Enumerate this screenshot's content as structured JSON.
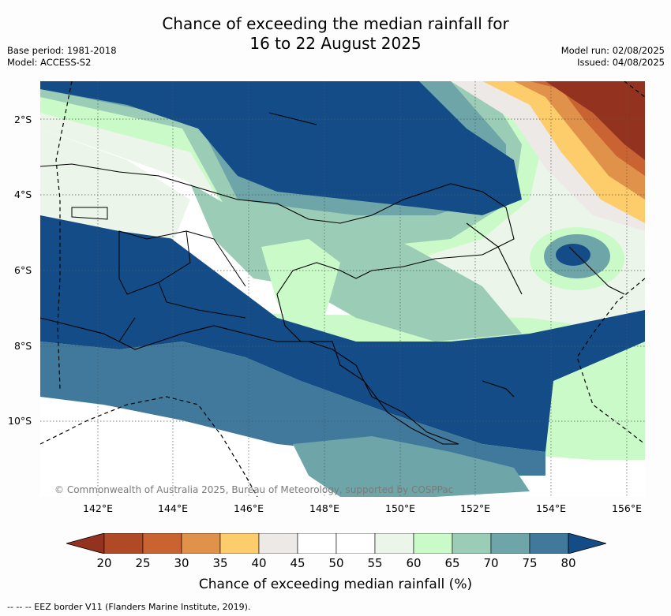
{
  "title_line1": "Chance of exceeding the median rainfall for",
  "title_line2": "16 to 22 August 2025",
  "base_period": "Base period: 1981-2018",
  "model": "Model: ACCESS-S2",
  "model_run": "Model run: 02/08/2025",
  "issued": "Issued: 04/08/2025",
  "lat_labels": [
    "2°S",
    "4°S",
    "6°S",
    "8°S",
    "10°S"
  ],
  "lon_labels": [
    "142°E",
    "144°E",
    "146°E",
    "148°E",
    "150°E",
    "152°E",
    "154°E",
    "156°E"
  ],
  "copyright": "© Commonwealth of Australia 2025, Bureau of Meteorology, supported by COSPPac",
  "colorbar": {
    "ticks": [
      "20",
      "25",
      "30",
      "35",
      "40",
      "45",
      "50",
      "55",
      "60",
      "65",
      "70",
      "75",
      "80"
    ],
    "colors": [
      "#93331f",
      "#b04a26",
      "#c96432",
      "#e1924a",
      "#fdcd6c",
      "#ede9e6",
      "#ffffff",
      "#ffffff",
      "#ecf5ea",
      "#cbfac9",
      "#9bcdb6",
      "#6da5a8",
      "#40799b",
      "#134c87"
    ],
    "label": "Chance of exceeding median rainfall (%)"
  },
  "eez_note": "-- -- -- EEZ border V11 (Flanders Marine Institute, 2019)."
}
